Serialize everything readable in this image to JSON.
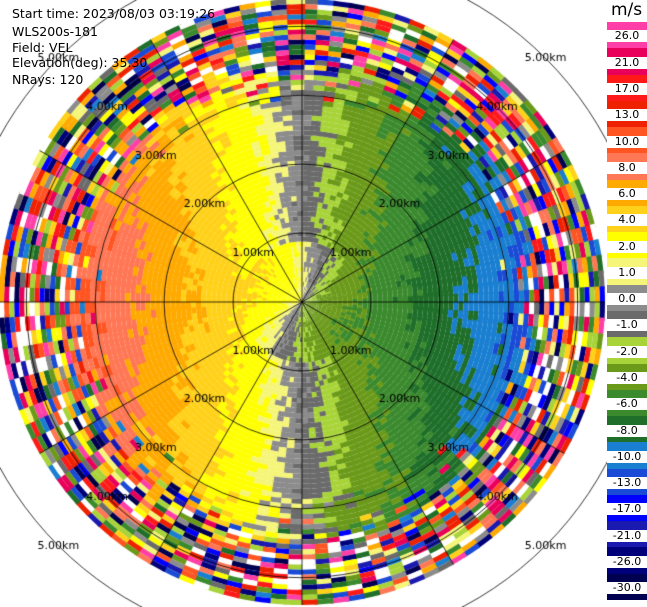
{
  "header": {
    "start_time": "Start time: 2023/08/03 03:19:26",
    "station": "WLS200s-181",
    "field": "Field: VEL",
    "elevation": "Elevation(deg): 35.30",
    "nrays": "NRays: 120"
  },
  "colorbar": {
    "unit": "m/s",
    "levels": [
      "26.0",
      "21.0",
      "17.0",
      "13.0",
      "10.0",
      "8.0",
      "6.0",
      "4.0",
      "2.0",
      "1.0",
      "0.0",
      "-1.0",
      "-2.0",
      "-4.0",
      "-6.0",
      "-8.0",
      "-10.0",
      "-13.0",
      "-17.0",
      "-21.0",
      "-26.0",
      "-30.0"
    ],
    "colors": [
      "#ff3fa7",
      "#e8005a",
      "#ff1a1a",
      "#ee2200",
      "#ff5522",
      "#ff7755",
      "#ffaa00",
      "#ffd11a",
      "#ffff00",
      "#f5f57a",
      "#8c8c8c",
      "#6b6b6b",
      "#a8d43a",
      "#6b9a1a",
      "#3b8a2e",
      "#1f6f2a",
      "#1a7fd1",
      "#1a4bd6",
      "#0000ff",
      "#1a1ab0",
      "#00007a",
      "#000050"
    ]
  },
  "chart_data": {
    "type": "ppi",
    "field": "VEL",
    "unit": "m/s",
    "nrays": 120,
    "elevation_deg": 35.3,
    "range_ring_labels": [
      "1.00km",
      "2.00km",
      "3.00km",
      "4.00km",
      "5.00km"
    ],
    "range_rings_km": [
      1,
      2,
      3,
      4,
      5
    ],
    "max_range_km": 5.1,
    "velocity_pattern": {
      "toward_sector_azimuth_deg": [
        20,
        160
      ],
      "away_sector_azimuth_deg": [
        200,
        340
      ],
      "toward_peak_ms": -8,
      "away_peak_ms": 8,
      "clean_data_range_km": 3.9,
      "noise_range_km": [
        4.0,
        5.1
      ]
    }
  }
}
